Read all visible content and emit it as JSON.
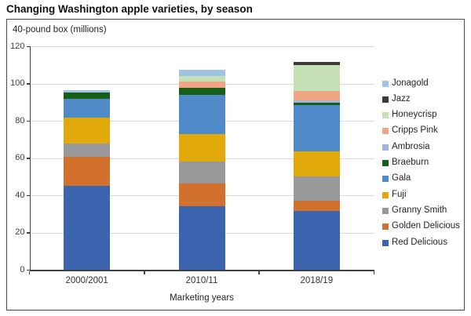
{
  "title": "Changing Washington apple varieties, by season",
  "chart_data": {
    "type": "bar",
    "stacked": true,
    "title": "Changing Washington apple varieties, by season",
    "units_label": "40-pound box (millions)",
    "xlabel": "Marketing years",
    "ylabel": "40-pound box (millions)",
    "categories": [
      "2000/2001",
      "2010/11",
      "2018/19"
    ],
    "series": [
      {
        "name": "Jonagold",
        "color": "#9DC3E6",
        "values": [
          1.5,
          3.5,
          0
        ]
      },
      {
        "name": "Jazz",
        "color": "#3B3B3B",
        "values": [
          0,
          0,
          1.5
        ]
      },
      {
        "name": "Honeycrisp",
        "color": "#C5E0B4",
        "values": [
          0,
          3,
          14
        ]
      },
      {
        "name": "Cripps Pink",
        "color": "#EFA687",
        "values": [
          0,
          3.5,
          5
        ]
      },
      {
        "name": "Ambrosia",
        "color": "#A2B5DC",
        "values": [
          0,
          0,
          1.5
        ]
      },
      {
        "name": "Braeburn",
        "color": "#175E17",
        "values": [
          3,
          3.5,
          1
        ]
      },
      {
        "name": "Gala",
        "color": "#4F8BC9",
        "values": [
          10.5,
          21,
          25
        ]
      },
      {
        "name": "Fuji",
        "color": "#E2A90A",
        "values": [
          13.5,
          15,
          13.5
        ]
      },
      {
        "name": "Granny Smith",
        "color": "#999999",
        "values": [
          7.5,
          11.5,
          13
        ]
      },
      {
        "name": "Golden Delicious",
        "color": "#D2702E",
        "values": [
          15.5,
          12.5,
          5.5
        ]
      },
      {
        "name": "Red Delicious",
        "color": "#3B63AE",
        "values": [
          45,
          34,
          31.5
        ]
      }
    ],
    "stack_totals": [
      96.5,
      107.5,
      111.5
    ],
    "ylim": [
      0,
      120
    ],
    "yticks": [
      0,
      20,
      40,
      60,
      80,
      100,
      120
    ],
    "grid": "horizontal",
    "legend_position": "right"
  },
  "colors": {
    "frame_border": "#4a4a4a",
    "axis": "#404040",
    "gridline": "#d9d9d9",
    "title_text": "#111111",
    "axis_text": "#3d3d3d",
    "label_text": "#262626"
  }
}
